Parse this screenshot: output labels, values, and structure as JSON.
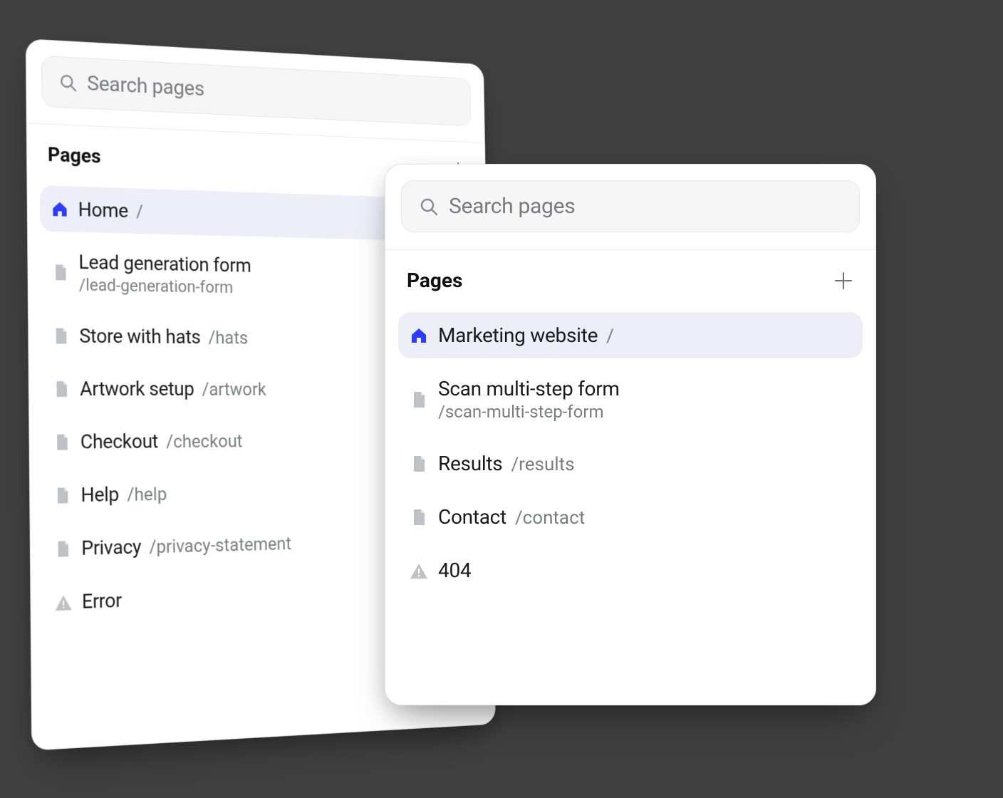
{
  "colors": {
    "page_bg": "#404040",
    "panel_bg": "#ffffff",
    "panel_border": "#e5e5e7",
    "search_bg": "#f6f6f7",
    "search_border": "#e6e6e8",
    "placeholder": "#7a7b80",
    "icon_muted": "#8a8b8f",
    "title": "#111111",
    "item_title": "#1b1b1f",
    "item_path": "#7b7d82",
    "doc_icon": "#bfc1c6",
    "home_icon": "#2a3cff",
    "selected_bg": "#eeeef9"
  },
  "typography": {
    "search_placeholder_size": 30,
    "section_title_size": 28,
    "section_title_weight": 700,
    "item_title_size": 28,
    "item_path_size": 26
  },
  "panel_back": {
    "search_placeholder": "Search pages",
    "section_title": "Pages",
    "items": [
      {
        "icon": "home",
        "title": "Home",
        "path": "/",
        "selected": true,
        "stack": false
      },
      {
        "icon": "doc",
        "title": "Lead generation form",
        "path": "/lead-generation-form",
        "selected": false,
        "stack": true
      },
      {
        "icon": "doc",
        "title": "Store with hats",
        "path": "/hats",
        "selected": false,
        "stack": false
      },
      {
        "icon": "doc",
        "title": "Artwork setup",
        "path": "/artwork",
        "selected": false,
        "stack": false
      },
      {
        "icon": "doc",
        "title": "Checkout",
        "path": "/checkout",
        "selected": false,
        "stack": false
      },
      {
        "icon": "doc",
        "title": "Help",
        "path": "/help",
        "selected": false,
        "stack": false
      },
      {
        "icon": "doc",
        "title": "Privacy",
        "path": "/privacy-statement",
        "selected": false,
        "stack": false
      },
      {
        "icon": "warn",
        "title": "Error",
        "path": "",
        "selected": false,
        "stack": false
      }
    ]
  },
  "panel_front": {
    "search_placeholder": "Search pages",
    "section_title": "Pages",
    "items": [
      {
        "icon": "home",
        "title": "Marketing website",
        "path": "/",
        "selected": true,
        "stack": false
      },
      {
        "icon": "doc",
        "title": "Scan multi-step form",
        "path": "/scan-multi-step-form",
        "selected": false,
        "stack": true
      },
      {
        "icon": "doc",
        "title": "Results",
        "path": "/results",
        "selected": false,
        "stack": false
      },
      {
        "icon": "doc",
        "title": "Contact",
        "path": "/contact",
        "selected": false,
        "stack": false
      },
      {
        "icon": "warn",
        "title": "404",
        "path": "",
        "selected": false,
        "stack": false
      }
    ]
  }
}
